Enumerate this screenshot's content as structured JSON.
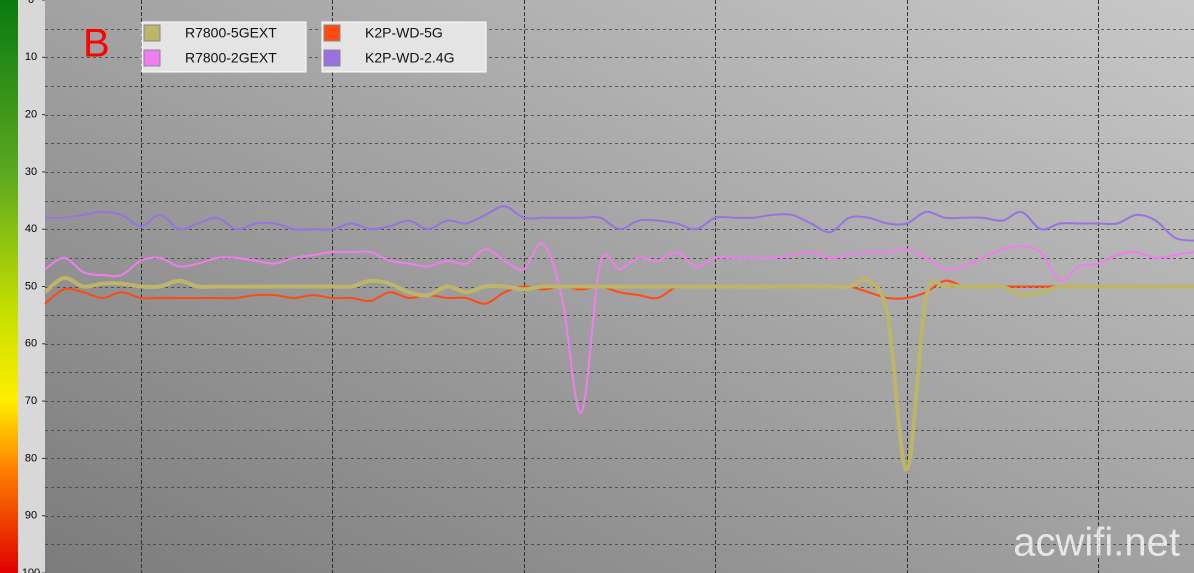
{
  "chart_data": {
    "type": "line",
    "label": "B",
    "watermark": "acwifi.net",
    "y_inverted": true,
    "ylim": [
      0,
      100
    ],
    "yticks": [
      0,
      10,
      20,
      30,
      40,
      50,
      60,
      70,
      80,
      90,
      100
    ],
    "ygrid": [
      5,
      10,
      15,
      20,
      25,
      30,
      35,
      40,
      45,
      50,
      55,
      60,
      65,
      70,
      75,
      80,
      85,
      90,
      95
    ],
    "xlim": [
      0,
      120
    ],
    "xgrid": [
      10,
      30,
      50,
      70,
      90,
      110
    ],
    "x": [
      0,
      2,
      4,
      6,
      8,
      10,
      12,
      14,
      16,
      18,
      20,
      22,
      24,
      26,
      28,
      30,
      32,
      34,
      36,
      38,
      40,
      42,
      44,
      46,
      48,
      50,
      52,
      54,
      56,
      58,
      60,
      62,
      64,
      66,
      68,
      70,
      72,
      74,
      76,
      78,
      80,
      82,
      84,
      86,
      88,
      90,
      92,
      94,
      96,
      98,
      100,
      102,
      104,
      106,
      108,
      110,
      112,
      114,
      116,
      118,
      120
    ],
    "series": [
      {
        "name": "R7800-5GEXT",
        "color": "#bdb56a",
        "linewidth": 4,
        "values": [
          51,
          48.5,
          50,
          49.5,
          49.5,
          50,
          50,
          49,
          50,
          50,
          50,
          50,
          50,
          50,
          50,
          50,
          50,
          49,
          49.5,
          51,
          51.5,
          50,
          51,
          50,
          50,
          50.5,
          50,
          50,
          50,
          50,
          50,
          50,
          50,
          50,
          50,
          50,
          50,
          50,
          50,
          50,
          50,
          50,
          50,
          49,
          55,
          82,
          52,
          50,
          50,
          50,
          50,
          51.5,
          51,
          50,
          50,
          50,
          50,
          50,
          50,
          50,
          50
        ]
      },
      {
        "name": "R7800-2GEXT",
        "color": "#f07cf0",
        "linewidth": 2,
        "values": [
          47,
          45,
          47.5,
          48,
          48,
          45.5,
          45,
          46.5,
          46,
          45,
          45,
          45.5,
          46,
          45,
          44.5,
          44,
          44,
          44,
          45.5,
          46,
          46.5,
          45.5,
          46,
          43.5,
          45.5,
          47,
          42.5,
          52,
          72,
          46,
          47,
          45,
          45.5,
          44,
          46.5,
          45,
          45,
          45,
          45,
          44.5,
          44,
          45,
          44.5,
          44,
          44,
          43.5,
          45,
          47,
          46.5,
          45,
          43.5,
          43,
          44,
          49,
          46.5,
          46,
          44.5,
          44,
          45,
          44.5,
          44
        ]
      },
      {
        "name": "K2P-WD-5G",
        "color": "#ff4a10",
        "linewidth": 2,
        "values": [
          53,
          50.5,
          51,
          52,
          51,
          52,
          52,
          52,
          52,
          52,
          52,
          51.5,
          51.5,
          52,
          51.5,
          52,
          52,
          52.5,
          51,
          52,
          51.5,
          52,
          52,
          53,
          51,
          50,
          50.5,
          50,
          50.5,
          50,
          51,
          51.5,
          52,
          50,
          50,
          50,
          50,
          50,
          50,
          50,
          50,
          50,
          50,
          51,
          52,
          52,
          51,
          49,
          50,
          50,
          50,
          50,
          50,
          50,
          50,
          50,
          50,
          50,
          50,
          50,
          50
        ]
      },
      {
        "name": "K2P-WD-2.4G",
        "color": "#9a72e0",
        "linewidth": 2,
        "values": [
          38,
          38,
          37.5,
          37,
          37.5,
          39.5,
          37.5,
          40,
          39,
          38,
          40,
          39,
          39,
          40,
          40,
          40,
          39,
          40,
          39.5,
          38.5,
          40,
          38.5,
          39,
          37.5,
          36,
          38,
          38,
          38,
          38,
          38,
          40,
          38.5,
          38.5,
          39,
          40,
          38,
          38,
          38,
          37.5,
          37.5,
          39,
          40.5,
          38,
          38,
          39,
          39,
          37,
          38,
          38,
          38,
          38.5,
          37,
          40,
          39,
          39,
          39,
          39,
          37.5,
          38.5,
          41.5,
          42
        ]
      }
    ]
  }
}
